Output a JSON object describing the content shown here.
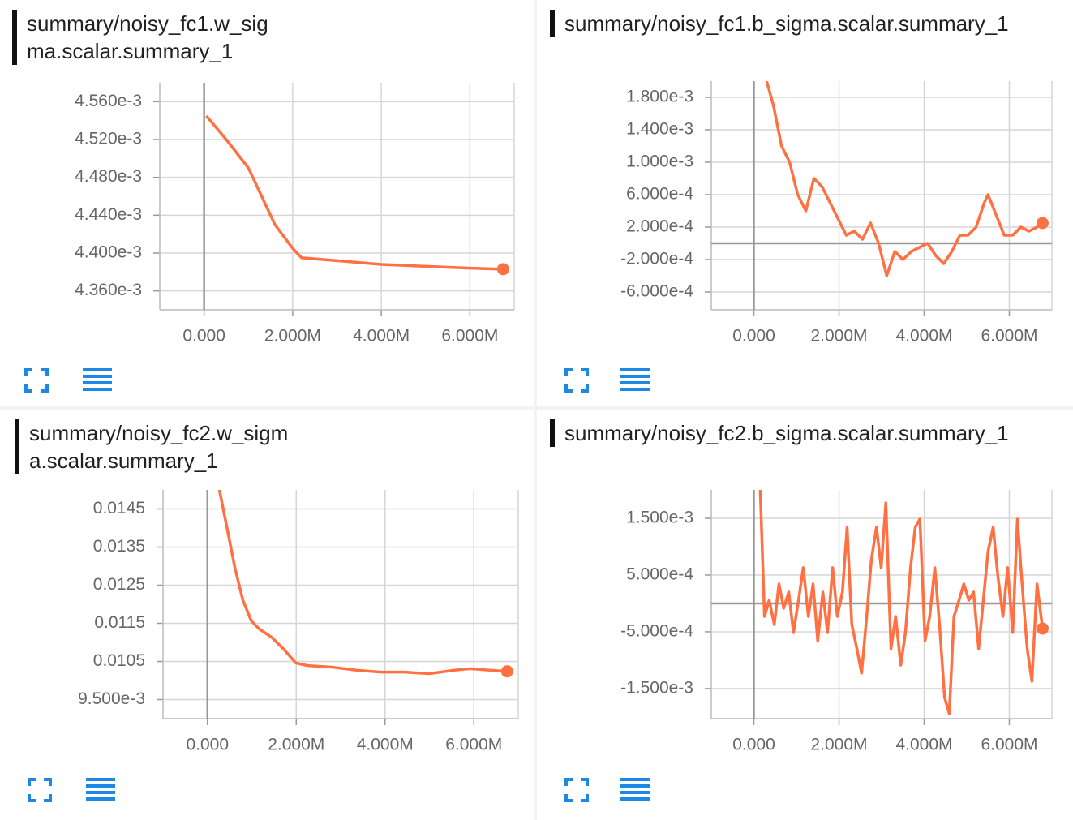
{
  "chart_data": [
    {
      "type": "line",
      "title": "summary/noisy_fc1.w_sigma.scalar.summary_1",
      "color": "#ff7043",
      "grid": true,
      "xlim": [
        -1000000,
        7000000
      ],
      "xticks": [
        {
          "value": 0,
          "label": "0.000"
        },
        {
          "value": 2000000,
          "label": "2.000M"
        },
        {
          "value": 4000000,
          "label": "4.000M"
        },
        {
          "value": 6000000,
          "label": "6.000M"
        }
      ],
      "ylim": [
        0.00434,
        0.00458
      ],
      "yticks": [
        {
          "value": 0.00456,
          "label": "4.560e-3"
        },
        {
          "value": 0.00452,
          "label": "4.520e-3"
        },
        {
          "value": 0.00448,
          "label": "4.480e-3"
        },
        {
          "value": 0.00444,
          "label": "4.440e-3"
        },
        {
          "value": 0.0044,
          "label": "4.400e-3"
        },
        {
          "value": 0.00436,
          "label": "4.360e-3"
        }
      ],
      "x": [
        50000,
        500000,
        1000000,
        1300000,
        1600000,
        2000000,
        2200000,
        3000000,
        4000000,
        5000000,
        6000000,
        6750000
      ],
      "values": [
        0.004545,
        0.00452,
        0.00449,
        0.00446,
        0.00443,
        0.004405,
        0.004395,
        0.004392,
        0.004388,
        0.004386,
        0.004384,
        0.004383
      ]
    },
    {
      "type": "line",
      "title": "summary/noisy_fc1.b_sigma.scalar.summary_1",
      "color": "#ff7043",
      "grid": true,
      "xlim": [
        -1000000,
        7000000
      ],
      "xticks": [
        {
          "value": 0,
          "label": "0.000"
        },
        {
          "value": 2000000,
          "label": "2.000M"
        },
        {
          "value": 4000000,
          "label": "4.000M"
        },
        {
          "value": 6000000,
          "label": "6.000M"
        }
      ],
      "ylim": [
        -0.00082,
        0.002
      ],
      "yticks": [
        {
          "value": 0.0018,
          "label": "1.800e-3"
        },
        {
          "value": 0.0014,
          "label": "1.400e-3"
        },
        {
          "value": 0.001,
          "label": "1.000e-3"
        },
        {
          "value": 0.0006,
          "label": "6.000e-4"
        },
        {
          "value": 0.0002,
          "label": "2.000e-4"
        },
        {
          "value": -0.0002,
          "label": "-2.000e-4"
        },
        {
          "value": -0.0006,
          "label": "-6.000e-4"
        }
      ],
      "x": [
        300000,
        460000,
        650000,
        840000,
        1030000,
        1220000,
        1410000,
        1600000,
        1790000,
        1980000,
        2170000,
        2360000,
        2550000,
        2740000,
        2930000,
        3120000,
        3310000,
        3500000,
        3700000,
        3890000,
        4080000,
        4270000,
        4460000,
        4650000,
        4840000,
        5030000,
        5220000,
        5410000,
        5500000,
        5690000,
        5880000,
        6080000,
        6270000,
        6460000,
        6650000,
        6780000
      ],
      "values": [
        0.002,
        0.0017,
        0.0012,
        0.001,
        0.0006,
        0.0004,
        0.0008,
        0.0007,
        0.0005,
        0.0003,
        0.0001,
        0.00015,
        5e-05,
        0.00025,
        0,
        -0.0004,
        -0.0001,
        -0.0002,
        -0.0001,
        -5e-05,
        0,
        -0.00015,
        -0.00025,
        -0.0001,
        0.0001,
        0.0001,
        0.0002,
        0.0005,
        0.0006,
        0.00035,
        0.0001,
        0.0001,
        0.0002,
        0.00015,
        0.0002,
        0.00025
      ]
    },
    {
      "type": "line",
      "title": "summary/noisy_fc2.w_sigma.scalar.summary_1",
      "color": "#ff7043",
      "grid": true,
      "xlim": [
        -1000000,
        7000000
      ],
      "xticks": [
        {
          "value": 0,
          "label": "0.000"
        },
        {
          "value": 2000000,
          "label": "2.000M"
        },
        {
          "value": 4000000,
          "label": "4.000M"
        },
        {
          "value": 6000000,
          "label": "6.000M"
        }
      ],
      "ylim": [
        0.009,
        0.015
      ],
      "yticks": [
        0.0145,
        0.0135,
        0.0125,
        0.0115,
        0.0105,
        {
          "value": 0.0095,
          "label": "9.500e-3"
        }
      ],
      "x": [
        270000,
        440000,
        620000,
        800000,
        990000,
        1170000,
        1440000,
        1720000,
        1990000,
        2260000,
        2810000,
        3360000,
        3900000,
        4450000,
        5000000,
        5550000,
        5910000,
        6370000,
        6750000
      ],
      "values": [
        0.015,
        0.01401,
        0.01295,
        0.0121,
        0.01156,
        0.01135,
        0.01114,
        0.01082,
        0.01046,
        0.01039,
        0.01035,
        0.01027,
        0.01022,
        0.01022,
        0.01018,
        0.01027,
        0.01031,
        0.01027,
        0.01024
      ]
    },
    {
      "type": "line",
      "title": "summary/noisy_fc2.b_sigma.scalar.summary_1",
      "color": "#ff7043",
      "grid": true,
      "xlim": [
        -1000000,
        7000000
      ],
      "xticks": [
        {
          "value": 0,
          "label": "0.000"
        },
        {
          "value": 2000000,
          "label": "2.000M"
        },
        {
          "value": 4000000,
          "label": "4.000M"
        },
        {
          "value": 6000000,
          "label": "6.000M"
        }
      ],
      "ylim": [
        -0.00203,
        0.002
      ],
      "yticks": [
        {
          "value": 0.0015,
          "label": "1.500e-3"
        },
        {
          "value": 0.0005,
          "label": "5.000e-4"
        },
        {
          "value": -0.0005,
          "label": "-5.000e-4"
        },
        {
          "value": -0.0015,
          "label": "-1.500e-3"
        }
      ],
      "x": [
        150000,
        250000,
        360000,
        480000,
        590000,
        700000,
        820000,
        930000,
        1050000,
        1160000,
        1280000,
        1390000,
        1500000,
        1620000,
        1730000,
        1850000,
        1960000,
        2080000,
        2190000,
        2300000,
        2420000,
        2530000,
        2650000,
        2760000,
        2880000,
        2990000,
        3100000,
        3220000,
        3330000,
        3450000,
        3560000,
        3680000,
        3790000,
        3900000,
        4020000,
        4130000,
        4250000,
        4360000,
        4480000,
        4590000,
        4700000,
        4820000,
        4930000,
        5050000,
        5160000,
        5280000,
        5390000,
        5500000,
        5620000,
        5730000,
        5850000,
        5960000,
        6080000,
        6190000,
        6300000,
        6420000,
        6530000,
        6650000,
        6780000
      ],
      "values": [
        0.002,
        -0.000229,
        5.7e-05,
        -0.000371,
        0.000343,
        -8.6e-05,
        0.0002,
        -0.000514,
        5.7e-05,
        0.000629,
        -0.000229,
        0.000343,
        -0.000657,
        0.0002,
        -0.000514,
        0.000629,
        -0.000229,
        0.0002,
        0.001343,
        -0.000371,
        -0.0008,
        -0.001229,
        -0.000229,
        0.000771,
        0.001343,
        0.000629,
        0.001771,
        -0.0008,
        -0.000229,
        -0.001086,
        -0.000514,
        0.000629,
        0.001343,
        0.001486,
        -0.000657,
        -0.000229,
        0.000629,
        -0.000371,
        -0.001657,
        -0.001943,
        -0.000229,
        5.7e-05,
        0.000343,
        5.7e-05,
        0.0002,
        -0.0008,
        5.7e-05,
        0.000914,
        0.001343,
        0.000486,
        -0.000229,
        0.000629,
        -0.000514,
        0.001486,
        0.000343,
        -0.0008,
        -0.001371,
        0.000343,
        -0.000443
      ]
    }
  ]
}
